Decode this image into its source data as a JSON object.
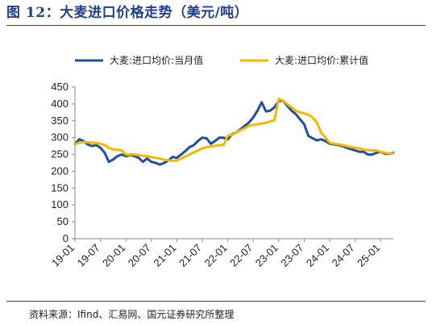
{
  "header": {
    "title": "图 12：大麦进口价格走势（美元/吨）"
  },
  "footer": {
    "source": "资料来源：Ifind、汇易网、国元证券研究所整理"
  },
  "colors": {
    "series_monthly": "#1f4fa0",
    "series_cumulative": "#f5b800",
    "title": "#1f3f8f"
  },
  "chart_data": {
    "type": "line",
    "title": "图 12：大麦进口价格走势（美元/吨）",
    "ylim": [
      0,
      450
    ],
    "yticks": [
      0,
      50,
      100,
      150,
      200,
      250,
      300,
      350,
      400,
      450
    ],
    "xticks": [
      "19-01",
      "19-07",
      "20-01",
      "20-07",
      "21-01",
      "21-07",
      "22-01",
      "22-07",
      "23-01",
      "23-07",
      "24-01",
      "24-07",
      "25-01"
    ],
    "x_range": [
      "19-01",
      "25-04"
    ],
    "legend_position": "top",
    "grid": false,
    "series": [
      {
        "name": "大麦:进口均价:当月值",
        "color": "#1f4fa0",
        "x": [
          "19-01",
          "19-02",
          "19-03",
          "19-04",
          "19-05",
          "19-06",
          "19-07",
          "19-08",
          "19-09",
          "19-10",
          "19-11",
          "19-12",
          "20-01",
          "20-02",
          "20-03",
          "20-04",
          "20-05",
          "20-06",
          "20-07",
          "20-08",
          "20-09",
          "20-10",
          "20-11",
          "20-12",
          "21-01",
          "21-02",
          "21-03",
          "21-04",
          "21-05",
          "21-06",
          "21-07",
          "21-08",
          "21-09",
          "21-10",
          "21-11",
          "21-12",
          "22-01",
          "22-02",
          "22-03",
          "22-04",
          "22-05",
          "22-06",
          "22-07",
          "22-08",
          "22-09",
          "22-10",
          "22-11",
          "22-12",
          "23-01",
          "23-02",
          "23-03",
          "23-04",
          "23-05",
          "23-06",
          "23-07",
          "23-08",
          "23-09",
          "23-10",
          "23-11",
          "23-12",
          "24-01",
          "24-02",
          "24-03",
          "24-04",
          "24-05",
          "24-06",
          "24-07",
          "24-08",
          "24-09",
          "24-10",
          "24-11",
          "24-12",
          "25-01",
          "25-02",
          "25-03",
          "25-04"
        ],
        "values": [
          280,
          295,
          290,
          280,
          275,
          278,
          270,
          255,
          228,
          235,
          245,
          250,
          245,
          248,
          245,
          240,
          228,
          238,
          228,
          225,
          220,
          225,
          232,
          243,
          240,
          250,
          260,
          272,
          278,
          290,
          300,
          298,
          282,
          290,
          300,
          300,
          295,
          310,
          315,
          325,
          335,
          345,
          360,
          380,
          405,
          378,
          380,
          390,
          408,
          410,
          395,
          380,
          370,
          355,
          340,
          305,
          298,
          292,
          295,
          290,
          282,
          280,
          278,
          275,
          270,
          266,
          262,
          258,
          258,
          250,
          250,
          255,
          258,
          252,
          252,
          255
        ]
      },
      {
        "name": "大麦:进口均价:累计值",
        "color": "#f5b800",
        "x": [
          "19-01",
          "19-02",
          "19-03",
          "19-04",
          "19-05",
          "19-06",
          "19-07",
          "19-08",
          "19-09",
          "19-10",
          "19-11",
          "19-12",
          "20-01",
          "20-02",
          "20-03",
          "20-04",
          "20-05",
          "20-06",
          "20-07",
          "20-08",
          "20-09",
          "20-10",
          "20-11",
          "20-12",
          "21-01",
          "21-02",
          "21-03",
          "21-04",
          "21-05",
          "21-06",
          "21-07",
          "21-08",
          "21-09",
          "21-10",
          "21-11",
          "21-12",
          "22-01",
          "22-02",
          "22-03",
          "22-04",
          "22-05",
          "22-06",
          "22-07",
          "22-08",
          "22-09",
          "22-10",
          "22-11",
          "22-12",
          "23-01",
          "23-02",
          "23-03",
          "23-04",
          "23-05",
          "23-06",
          "23-07",
          "23-08",
          "23-09",
          "23-10",
          "23-11",
          "23-12",
          "24-01",
          "24-02",
          "24-03",
          "24-04",
          "24-05",
          "24-06",
          "24-07",
          "24-08",
          "24-09",
          "24-10",
          "24-11",
          "24-12",
          "25-01",
          "25-02",
          "25-03",
          "25-04"
        ],
        "values": [
          280,
          285,
          287,
          286,
          285,
          284,
          282,
          278,
          270,
          265,
          264,
          262,
          250,
          250,
          250,
          248,
          246,
          245,
          242,
          240,
          238,
          234,
          233,
          232,
          232,
          238,
          244,
          250,
          256,
          262,
          268,
          272,
          274,
          276,
          278,
          278,
          306,
          308,
          315,
          322,
          328,
          335,
          338,
          340,
          342,
          344,
          348,
          352,
          415,
          410,
          400,
          390,
          380,
          375,
          372,
          368,
          360,
          345,
          315,
          300,
          285,
          282,
          280,
          278,
          275,
          272,
          270,
          268,
          265,
          263,
          262,
          262,
          258,
          255,
          253,
          253
        ]
      }
    ]
  }
}
